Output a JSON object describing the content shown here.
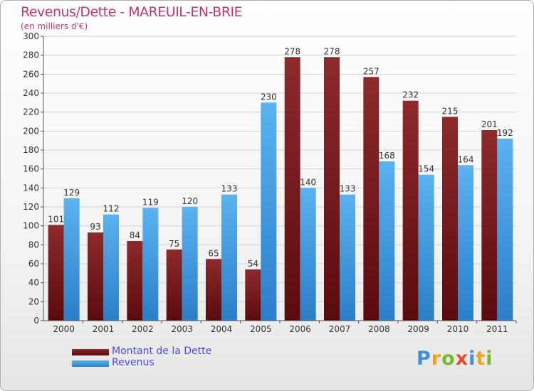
{
  "header": {
    "title": "Revenus/Dette - MAREUIL-EN-BRIE",
    "subtitle": "(en milliers d'€)"
  },
  "brand": {
    "letters": [
      "P",
      "r",
      "o",
      "x",
      "i",
      "t",
      "i"
    ],
    "colors": [
      "#3e8fd6",
      "#f2a11e",
      "#79b82a",
      "#e64a2e",
      "#3e8fd6",
      "#f2a11e",
      "#79b82a"
    ]
  },
  "chart_data": {
    "type": "bar",
    "categories": [
      "2000",
      "2001",
      "2002",
      "2003",
      "2004",
      "2005",
      "2006",
      "2007",
      "2008",
      "2009",
      "2010",
      "2011"
    ],
    "series": [
      {
        "name": "Montant de la Dette",
        "color": "#7a1a1c",
        "values": [
          101,
          93,
          84,
          75,
          65,
          54,
          278,
          278,
          257,
          232,
          215,
          201
        ]
      },
      {
        "name": "Revenus",
        "color": "#3f9be3",
        "values": [
          129,
          112,
          119,
          120,
          133,
          230,
          140,
          133,
          168,
          154,
          164,
          192
        ]
      }
    ],
    "yticks": [
      0,
      20,
      40,
      60,
      80,
      100,
      120,
      140,
      160,
      180,
      200,
      220,
      240,
      260,
      280,
      300
    ],
    "ylim": [
      0,
      300
    ],
    "grid": true,
    "legend": "bottom-left"
  }
}
